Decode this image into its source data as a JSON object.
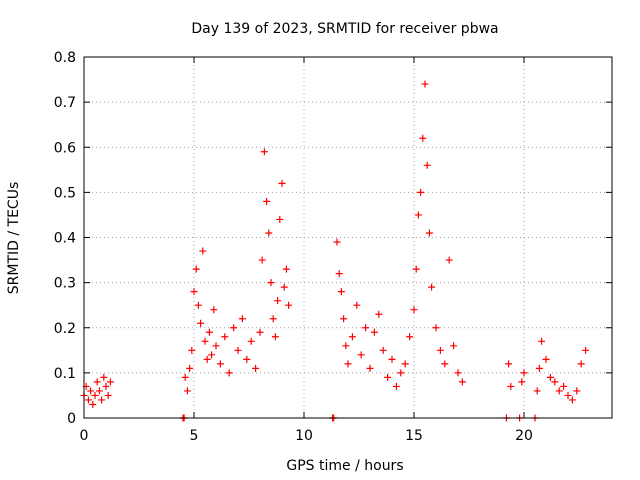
{
  "chart_data": {
    "type": "scatter",
    "title": "Day 139 of 2023, SRMTID for receiver pbwa",
    "xlabel": "GPS time / hours",
    "ylabel": "SRMTID / TECUs",
    "xlim": [
      0,
      24
    ],
    "ylim": [
      0,
      0.8
    ],
    "x_ticks": [
      0,
      5,
      10,
      15,
      20
    ],
    "x_tick_labels": [
      "0",
      "5",
      "10",
      "15",
      "20"
    ],
    "y_ticks": [
      0,
      0.1,
      0.2,
      0.3,
      0.4,
      0.5,
      0.6,
      0.7,
      0.8
    ],
    "y_tick_labels": [
      "0",
      "0.1",
      "0.2",
      "0.3",
      "0.4",
      "0.5",
      "0.6",
      "0.7",
      "0.8"
    ],
    "grid": true,
    "marker": "+",
    "color": "#ff0000",
    "series": [
      {
        "name": "SRMTID",
        "x": [
          0.0,
          0.1,
          0.2,
          0.3,
          0.4,
          0.5,
          0.6,
          0.7,
          0.8,
          0.9,
          1.0,
          1.1,
          1.2,
          4.5,
          4.55,
          4.6,
          4.7,
          4.8,
          4.9,
          5.0,
          5.1,
          5.2,
          5.3,
          5.4,
          5.5,
          5.6,
          5.7,
          5.8,
          5.9,
          6.0,
          6.2,
          6.4,
          6.6,
          6.8,
          7.0,
          7.2,
          7.4,
          7.6,
          7.8,
          8.0,
          8.1,
          8.2,
          8.3,
          8.4,
          8.5,
          8.6,
          8.7,
          8.8,
          8.9,
          9.0,
          9.1,
          9.2,
          9.3,
          11.3,
          11.35,
          11.5,
          11.6,
          11.7,
          11.8,
          11.9,
          12.0,
          12.2,
          12.4,
          12.6,
          12.8,
          13.0,
          13.2,
          13.4,
          13.6,
          13.8,
          14.0,
          14.2,
          14.4,
          14.6,
          14.8,
          15.0,
          15.1,
          15.2,
          15.3,
          15.4,
          15.5,
          15.6,
          15.7,
          15.8,
          16.0,
          16.2,
          16.4,
          16.6,
          16.8,
          17.0,
          17.2,
          19.2,
          19.3,
          19.4,
          19.8,
          19.9,
          20.0,
          20.5,
          20.6,
          20.7,
          20.8,
          21.0,
          21.2,
          21.4,
          21.6,
          21.8,
          22.0,
          22.2,
          22.4,
          22.6,
          22.8
        ],
        "y": [
          0.05,
          0.07,
          0.04,
          0.06,
          0.03,
          0.05,
          0.08,
          0.06,
          0.04,
          0.09,
          0.07,
          0.05,
          0.08,
          0.0,
          0.0,
          0.09,
          0.06,
          0.11,
          0.15,
          0.28,
          0.33,
          0.25,
          0.21,
          0.37,
          0.17,
          0.13,
          0.19,
          0.14,
          0.24,
          0.16,
          0.12,
          0.18,
          0.1,
          0.2,
          0.15,
          0.22,
          0.13,
          0.17,
          0.11,
          0.19,
          0.35,
          0.59,
          0.48,
          0.41,
          0.3,
          0.22,
          0.18,
          0.26,
          0.44,
          0.52,
          0.29,
          0.33,
          0.25,
          0.0,
          0.0,
          0.39,
          0.32,
          0.28,
          0.22,
          0.16,
          0.12,
          0.18,
          0.25,
          0.14,
          0.2,
          0.11,
          0.19,
          0.23,
          0.15,
          0.09,
          0.13,
          0.07,
          0.1,
          0.12,
          0.18,
          0.24,
          0.33,
          0.45,
          0.5,
          0.62,
          0.74,
          0.56,
          0.41,
          0.29,
          0.2,
          0.15,
          0.12,
          0.35,
          0.16,
          0.1,
          0.08,
          0.0,
          0.12,
          0.07,
          0.0,
          0.08,
          0.1,
          0.0,
          0.06,
          0.11,
          0.17,
          0.13,
          0.09,
          0.08,
          0.06,
          0.07,
          0.05,
          0.04,
          0.06,
          0.12,
          0.15
        ]
      }
    ]
  }
}
